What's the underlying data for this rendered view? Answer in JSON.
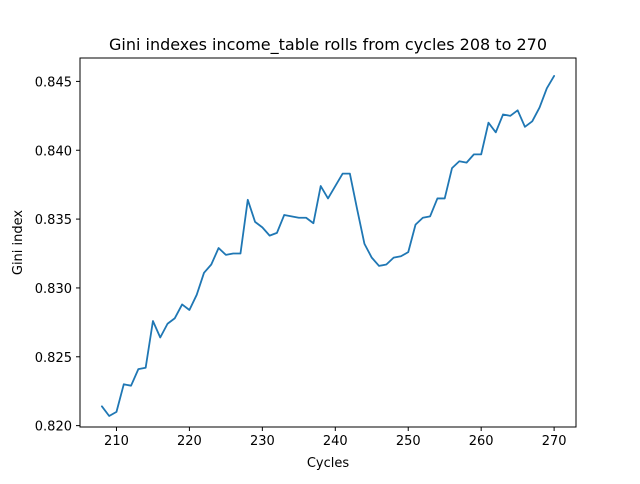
{
  "chart_data": {
    "type": "line",
    "title": "Gini indexes income_table rolls from cycles 208 to 270",
    "xlabel": "Cycles",
    "ylabel": "Gini index",
    "xlim": [
      205,
      273
    ],
    "ylim": [
      0.8199,
      0.8467
    ],
    "grid": false,
    "legend": "none",
    "xticks": [
      210,
      220,
      230,
      240,
      250,
      260,
      270
    ],
    "yticks": [
      0.82,
      0.825,
      0.83,
      0.835,
      0.84,
      0.845
    ],
    "ytick_labels": [
      "0.820",
      "0.825",
      "0.830",
      "0.835",
      "0.840",
      "0.845"
    ],
    "line_color": "#1f77b4",
    "series": [
      {
        "x": [
          208,
          209,
          210,
          211,
          212,
          213,
          214,
          215,
          216,
          217,
          218,
          219,
          220,
          221,
          222,
          223,
          224,
          225,
          226,
          227,
          228,
          229,
          230,
          231,
          232,
          233,
          234,
          235,
          236,
          237,
          238,
          239,
          240,
          241,
          242,
          243,
          244,
          245,
          246,
          247,
          248,
          249,
          250,
          251,
          252,
          253,
          254,
          255,
          256,
          257,
          258,
          259,
          260,
          261,
          262,
          263,
          264,
          265,
          266,
          267,
          268,
          269,
          270
        ],
        "values": [
          0.8214,
          0.8207,
          0.821,
          0.823,
          0.8229,
          0.8241,
          0.8242,
          0.8276,
          0.8264,
          0.8274,
          0.8278,
          0.8288,
          0.8284,
          0.8295,
          0.8311,
          0.8317,
          0.8329,
          0.8324,
          0.8325,
          0.8325,
          0.8364,
          0.8348,
          0.8344,
          0.8338,
          0.834,
          0.8353,
          0.8352,
          0.8351,
          0.8351,
          0.8347,
          0.8374,
          0.8365,
          0.8374,
          0.8383,
          0.8383,
          0.8357,
          0.8332,
          0.8322,
          0.8316,
          0.8317,
          0.8322,
          0.8323,
          0.8326,
          0.8346,
          0.8351,
          0.8352,
          0.8365,
          0.8365,
          0.8387,
          0.8392,
          0.8391,
          0.8397,
          0.8397,
          0.842,
          0.8413,
          0.8426,
          0.8425,
          0.8429,
          0.8417,
          0.8421,
          0.8431,
          0.8445,
          0.8454
        ]
      }
    ]
  }
}
